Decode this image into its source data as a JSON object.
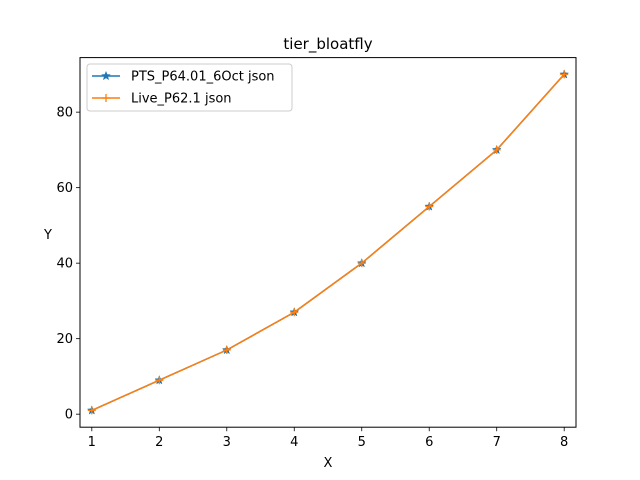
{
  "chart_data": {
    "type": "line",
    "title": "tier_bloatfly",
    "xlabel": "X",
    "ylabel": "Y",
    "x": [
      1,
      2,
      3,
      4,
      5,
      6,
      7,
      8
    ],
    "xlim": [
      0.825,
      8.175
    ],
    "ylim": [
      -3.45,
      94.45
    ],
    "xticks": [
      1,
      2,
      3,
      4,
      5,
      6,
      7,
      8
    ],
    "yticks": [
      0,
      20,
      40,
      60,
      80
    ],
    "grid": false,
    "legend_position": "upper-left",
    "series": [
      {
        "name": "PTS_P64.01_6Oct json",
        "values": [
          1,
          9,
          17,
          27,
          40,
          55,
          70,
          90
        ],
        "color": "#1f77b4",
        "marker": "star"
      },
      {
        "name": "Live_P62.1 json",
        "values": [
          1,
          9,
          17,
          27,
          40,
          55,
          70,
          90
        ],
        "color": "#ff7f0e",
        "marker": "plus"
      }
    ]
  }
}
